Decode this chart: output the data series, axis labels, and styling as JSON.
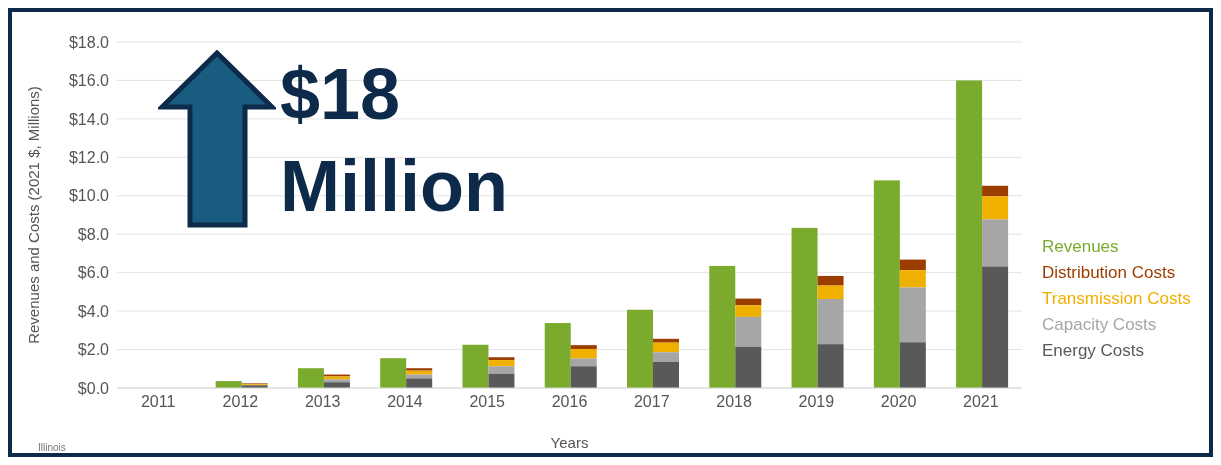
{
  "chart_data": {
    "type": "bar",
    "xlabel": "Years",
    "ylabel": "Revenues and Costs (2021 $, Millions)",
    "categories": [
      "2011",
      "2012",
      "2013",
      "2014",
      "2015",
      "2016",
      "2017",
      "2018",
      "2019",
      "2020",
      "2021"
    ],
    "series": [
      {
        "name": "Revenues",
        "color": "#7aab2c",
        "values": [
          null,
          0.36,
          1.03,
          1.55,
          2.25,
          3.38,
          4.07,
          6.35,
          8.33,
          10.8,
          16.0
        ]
      },
      {
        "name": "Distribution Costs",
        "color": "#9c3d00",
        "values": [
          null,
          0.04,
          0.1,
          0.13,
          0.15,
          0.2,
          0.2,
          0.35,
          0.5,
          0.55,
          0.55
        ],
        "base": [
          null,
          0.2,
          0.6,
          0.9,
          1.45,
          2.03,
          2.36,
          4.3,
          5.33,
          6.13,
          9.97
        ]
      },
      {
        "name": "Transmission Costs",
        "color": "#f0b000",
        "values": [
          null,
          0.06,
          0.15,
          0.2,
          0.32,
          0.5,
          0.5,
          0.6,
          0.7,
          0.9,
          1.2
        ],
        "base": [
          null,
          0.14,
          0.45,
          0.7,
          1.13,
          1.53,
          1.86,
          3.7,
          4.63,
          5.23,
          8.77
        ]
      },
      {
        "name": "Capacity Costs",
        "color": "#a6a6a6",
        "values": [
          null,
          null,
          0.15,
          0.2,
          0.39,
          0.4,
          0.5,
          1.55,
          2.35,
          2.85,
          2.45
        ],
        "base": [
          null,
          null,
          0.3,
          0.5,
          0.74,
          1.13,
          1.36,
          2.15,
          2.28,
          2.38,
          6.32
        ]
      },
      {
        "name": "Energy Costs",
        "color": "#595959",
        "values": [
          null,
          0.14,
          0.3,
          0.5,
          0.74,
          1.13,
          1.36,
          2.15,
          2.28,
          2.38,
          6.32
        ]
      }
    ],
    "ylim": [
      0,
      18
    ],
    "yticks": [
      {
        "value": 0,
        "label": "$0.0"
      },
      {
        "value": 2,
        "label": "$2.0"
      },
      {
        "value": 4,
        "label": "$4.0"
      },
      {
        "value": 6,
        "label": "$6.0"
      },
      {
        "value": 8,
        "label": "$8.0"
      },
      {
        "value": 10,
        "label": "$10.0"
      },
      {
        "value": 12,
        "label": "$12.0"
      },
      {
        "value": 14,
        "label": "$14.0"
      },
      {
        "value": 16,
        "label": "$16.0"
      },
      {
        "value": 18,
        "label": "$18.0"
      }
    ],
    "grid": "y",
    "legend": "right",
    "annotations": [
      "$18 Million",
      "Illinois"
    ]
  }
}
